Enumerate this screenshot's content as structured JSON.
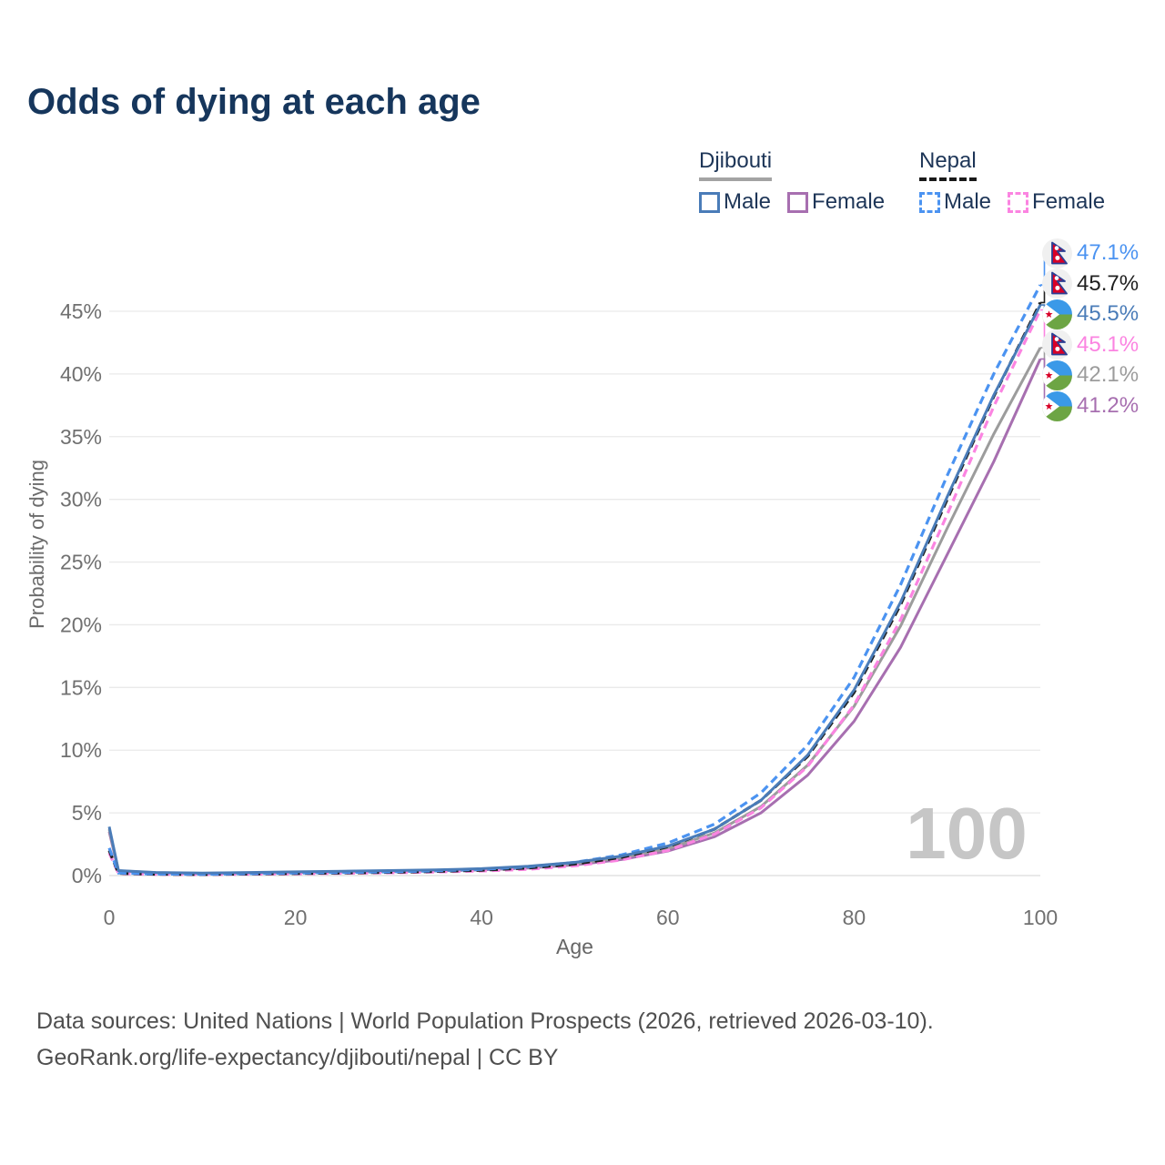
{
  "title": "Odds of dying at each age",
  "legend": {
    "groups": [
      {
        "country": "Djibouti",
        "underline_color": "#a3a3a3",
        "underline_style": "solid",
        "items": [
          {
            "label": "Male",
            "series": "djibouti_male"
          },
          {
            "label": "Female",
            "series": "djibouti_female"
          }
        ]
      },
      {
        "country": "Nepal",
        "underline_color": "#1a1a1a",
        "underline_style": "dashed",
        "items": [
          {
            "label": "Male",
            "series": "nepal_male"
          },
          {
            "label": "Female",
            "series": "nepal_female"
          }
        ]
      }
    ]
  },
  "watermark": "100",
  "footer": {
    "line1": "Data sources: United Nations | World Population Prospects (2026, retrieved 2026-03-10).",
    "line2": "GeoRank.org/life-expectancy/djibouti/nepal | CC BY"
  },
  "chart_data": {
    "type": "line",
    "title": "Odds of dying at each age",
    "xlabel": "Age",
    "ylabel": "Probability of dying",
    "xlim": [
      0,
      100
    ],
    "ylim": [
      0,
      47.5
    ],
    "grid": "horizontal",
    "legend_position": "top-right",
    "x_ticks": {
      "values": [
        0,
        20,
        40,
        60,
        80,
        100
      ],
      "labels": [
        "0",
        "20",
        "40",
        "60",
        "80",
        "100"
      ]
    },
    "y_ticks": {
      "values": [
        0,
        5,
        10,
        15,
        20,
        25,
        30,
        35,
        40,
        45
      ],
      "labels": [
        "0%",
        "5%",
        "10%",
        "15%",
        "20%",
        "25%",
        "30%",
        "35%",
        "40%",
        "45%"
      ]
    },
    "x": [
      0,
      1,
      5,
      10,
      15,
      20,
      25,
      30,
      35,
      40,
      45,
      50,
      55,
      60,
      65,
      70,
      75,
      80,
      85,
      90,
      95,
      100
    ],
    "series": [
      {
        "key": "nepal_male",
        "name": "Nepal Male",
        "country": "Nepal",
        "sex": "Male",
        "color": "#4b93f1",
        "dashed": true,
        "end_value": 47.1,
        "values": [
          2.2,
          0.2,
          0.12,
          0.1,
          0.15,
          0.2,
          0.25,
          0.3,
          0.38,
          0.5,
          0.7,
          1.05,
          1.65,
          2.6,
          4.1,
          6.6,
          10.4,
          15.8,
          23.2,
          31.9,
          40.0,
          47.1
        ]
      },
      {
        "key": "nepal_both",
        "name": "Nepal (both sexes)",
        "country": "Nepal",
        "sex": "Both",
        "color": "#1f1f1f",
        "dashed": true,
        "end_value": 45.7,
        "values": [
          2.0,
          0.18,
          0.11,
          0.09,
          0.13,
          0.17,
          0.21,
          0.26,
          0.33,
          0.43,
          0.6,
          0.92,
          1.45,
          2.3,
          3.7,
          6.0,
          9.5,
          14.6,
          21.6,
          30.0,
          38.2,
          45.7
        ]
      },
      {
        "key": "djibouti_male",
        "name": "Djibouti Male",
        "country": "Djibouti",
        "sex": "Male",
        "color": "#4a7cb8",
        "dashed": false,
        "end_value": 45.5,
        "values": [
          3.9,
          0.4,
          0.25,
          0.2,
          0.25,
          0.3,
          0.35,
          0.4,
          0.45,
          0.55,
          0.75,
          1.05,
          1.55,
          2.35,
          3.7,
          6.0,
          9.6,
          14.8,
          21.8,
          30.2,
          38.3,
          45.5
        ]
      },
      {
        "key": "nepal_female",
        "name": "Nepal Female",
        "country": "Nepal",
        "sex": "Female",
        "color": "#fb84e1",
        "dashed": true,
        "end_value": 45.1,
        "values": [
          1.8,
          0.16,
          0.1,
          0.08,
          0.11,
          0.14,
          0.18,
          0.22,
          0.28,
          0.36,
          0.5,
          0.78,
          1.25,
          2.0,
          3.3,
          5.4,
          8.7,
          13.6,
          20.4,
          28.8,
          37.4,
          45.1
        ]
      },
      {
        "key": "djibouti_both",
        "name": "Djibouti (both sexes)",
        "country": "Djibouti",
        "sex": "Both",
        "color": "#9c9c9c",
        "dashed": false,
        "end_value": 42.1,
        "values": [
          3.7,
          0.38,
          0.23,
          0.18,
          0.22,
          0.27,
          0.31,
          0.36,
          0.41,
          0.5,
          0.67,
          0.95,
          1.42,
          2.15,
          3.4,
          5.5,
          8.8,
          13.5,
          19.9,
          27.7,
          35.2,
          42.1
        ]
      },
      {
        "key": "djibouti_female",
        "name": "Djibouti Female",
        "country": "Djibouti",
        "sex": "Female",
        "color": "#a76fb0",
        "dashed": false,
        "end_value": 41.2,
        "values": [
          3.5,
          0.36,
          0.22,
          0.17,
          0.2,
          0.24,
          0.28,
          0.32,
          0.37,
          0.45,
          0.6,
          0.85,
          1.28,
          1.95,
          3.1,
          5.0,
          8.0,
          12.3,
          18.2,
          25.6,
          33.0,
          41.2
        ]
      }
    ],
    "draw_order": [
      "djibouti_female",
      "djibouti_both",
      "nepal_female",
      "nepal_both",
      "nepal_male",
      "djibouti_male"
    ],
    "end_labels": [
      {
        "series": "nepal_male",
        "label": "47.1%",
        "flag": "nepal-flag-icon"
      },
      {
        "series": "nepal_both",
        "label": "45.7%",
        "flag": "nepal-flag-icon"
      },
      {
        "series": "djibouti_male",
        "label": "45.5%",
        "flag": "djibouti-flag-icon"
      },
      {
        "series": "nepal_female",
        "label": "45.1%",
        "flag": "nepal-flag-icon"
      },
      {
        "series": "djibouti_both",
        "label": "42.1%",
        "flag": "djibouti-flag-icon"
      },
      {
        "series": "djibouti_female",
        "label": "41.2%",
        "flag": "djibouti-flag-icon"
      }
    ]
  }
}
